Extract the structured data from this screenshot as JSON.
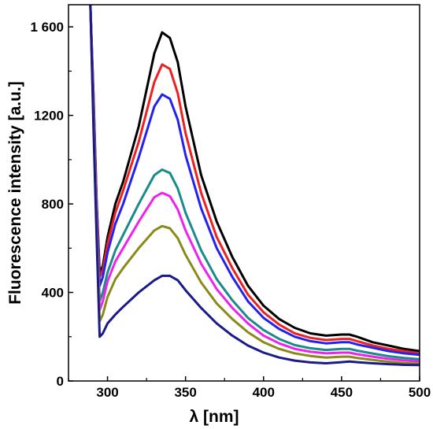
{
  "chart_data": {
    "type": "line",
    "title": "",
    "xlabel": "λ [nm]",
    "ylabel": "Fluorescence intensity [a.u.]",
    "xlim": [
      275,
      500
    ],
    "ylim": [
      0,
      1700
    ],
    "x_ticks": [
      300,
      350,
      400,
      450,
      500
    ],
    "x_tick_labels": [
      "300",
      "350",
      "400",
      "450",
      "500"
    ],
    "y_ticks": [
      0,
      400,
      800,
      1200,
      1600
    ],
    "y_tick_labels": [
      "0",
      "400",
      "800",
      "1200",
      "1 600"
    ],
    "grid": false,
    "legend": "none",
    "series": [
      {
        "color": "#000000",
        "x": [
          289,
          291,
          293,
          295,
          297,
          300,
          305,
          310,
          320,
          330,
          335,
          340,
          345,
          350,
          360,
          370,
          380,
          390,
          400,
          410,
          420,
          430,
          440,
          450,
          455,
          460,
          470,
          480,
          490,
          500
        ],
        "y": [
          1700,
          1300,
          820,
          490,
          520,
          650,
          800,
          900,
          1150,
          1480,
          1575,
          1550,
          1440,
          1240,
          930,
          720,
          560,
          430,
          340,
          280,
          240,
          215,
          205,
          210,
          210,
          200,
          175,
          160,
          145,
          135
        ]
      },
      {
        "color": "#ee2020",
        "x": [
          289,
          291,
          293,
          295,
          297,
          300,
          305,
          310,
          320,
          330,
          335,
          340,
          345,
          350,
          360,
          370,
          380,
          390,
          400,
          410,
          420,
          430,
          440,
          450,
          455,
          460,
          470,
          480,
          490,
          500
        ],
        "y": [
          1700,
          1280,
          800,
          470,
          500,
          620,
          760,
          860,
          1080,
          1350,
          1430,
          1410,
          1300,
          1120,
          850,
          650,
          510,
          390,
          310,
          255,
          215,
          195,
          185,
          190,
          190,
          180,
          160,
          145,
          135,
          125
        ]
      },
      {
        "color": "#2222ee",
        "x": [
          289,
          291,
          293,
          295,
          297,
          300,
          305,
          310,
          320,
          330,
          335,
          340,
          345,
          350,
          360,
          370,
          380,
          390,
          400,
          410,
          420,
          430,
          440,
          450,
          455,
          460,
          470,
          480,
          490,
          500
        ],
        "y": [
          1700,
          1260,
          780,
          430,
          470,
          580,
          710,
          800,
          1010,
          1240,
          1295,
          1275,
          1180,
          1020,
          780,
          600,
          470,
          360,
          285,
          235,
          200,
          180,
          170,
          175,
          175,
          165,
          150,
          135,
          125,
          118
        ]
      },
      {
        "color": "#1a8a8a",
        "x": [
          289,
          291,
          293,
          295,
          297,
          300,
          305,
          310,
          320,
          330,
          335,
          340,
          345,
          350,
          360,
          370,
          380,
          390,
          400,
          410,
          420,
          430,
          440,
          450,
          455,
          460,
          470,
          480,
          490,
          500
        ],
        "y": [
          1700,
          1230,
          740,
          360,
          400,
          490,
          590,
          660,
          800,
          930,
          955,
          940,
          870,
          760,
          590,
          460,
          365,
          285,
          230,
          190,
          162,
          148,
          140,
          145,
          145,
          137,
          124,
          112,
          104,
          98
        ]
      },
      {
        "color": "#ee22ee",
        "x": [
          289,
          291,
          293,
          295,
          297,
          300,
          305,
          310,
          320,
          330,
          335,
          340,
          345,
          350,
          360,
          370,
          380,
          390,
          400,
          410,
          420,
          430,
          440,
          450,
          455,
          460,
          470,
          480,
          490,
          500
        ],
        "y": [
          1700,
          1210,
          720,
          320,
          360,
          450,
          540,
          600,
          720,
          830,
          850,
          835,
          775,
          680,
          530,
          415,
          330,
          260,
          205,
          170,
          145,
          132,
          125,
          128,
          128,
          121,
          110,
          100,
          93,
          88
        ]
      },
      {
        "color": "#8a8a1a",
        "x": [
          289,
          291,
          293,
          295,
          297,
          300,
          305,
          310,
          320,
          330,
          335,
          340,
          345,
          350,
          360,
          370,
          380,
          390,
          400,
          410,
          420,
          430,
          440,
          450,
          455,
          460,
          470,
          480,
          490,
          500
        ],
        "y": [
          1700,
          1180,
          690,
          270,
          300,
          380,
          460,
          510,
          600,
          680,
          700,
          690,
          645,
          570,
          445,
          350,
          280,
          220,
          175,
          145,
          125,
          113,
          106,
          110,
          110,
          104,
          95,
          87,
          81,
          77
        ]
      },
      {
        "color": "#1a1a88",
        "x": [
          289,
          291,
          293,
          295,
          297,
          300,
          305,
          310,
          320,
          330,
          335,
          340,
          345,
          350,
          360,
          370,
          380,
          390,
          400,
          410,
          420,
          430,
          440,
          450,
          455,
          460,
          470,
          480,
          490,
          500
        ],
        "y": [
          1700,
          1150,
          650,
          200,
          215,
          260,
          300,
          335,
          400,
          455,
          475,
          475,
          455,
          410,
          330,
          260,
          205,
          160,
          128,
          106,
          92,
          84,
          80,
          85,
          88,
          85,
          80,
          76,
          73,
          72
        ]
      }
    ]
  }
}
